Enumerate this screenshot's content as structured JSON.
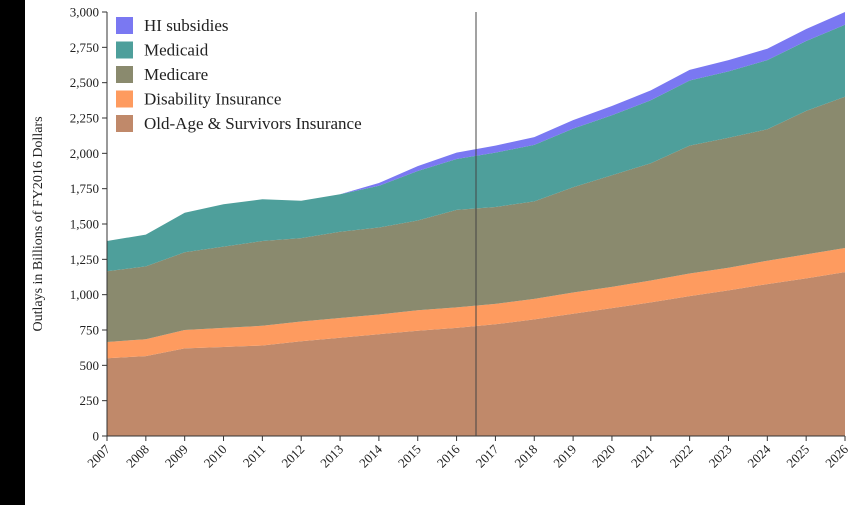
{
  "chart_data": {
    "type": "area",
    "stacked": true,
    "title": "",
    "xlabel": "",
    "ylabel": "Outlays in Billions of FY2016 Dollars",
    "ylim": [
      0,
      3000
    ],
    "yticks": [
      "0",
      "250",
      "500",
      "750",
      "1,000",
      "1,250",
      "1,500",
      "1,750",
      "2,000",
      "2,250",
      "2,500",
      "2,750",
      "3,000"
    ],
    "x": [
      "2007",
      "2008",
      "2009",
      "2010",
      "2011",
      "2012",
      "2013",
      "2014",
      "2015",
      "2016",
      "2017",
      "2018",
      "2019",
      "2020",
      "2021",
      "2022",
      "2023",
      "2024",
      "2025",
      "2026"
    ],
    "divider_x": 2016.5,
    "legend_position": "top-left",
    "series": [
      {
        "name": "Old-Age & Survivors Insurance",
        "color": "#c0896a",
        "values": [
          550,
          565,
          620,
          630,
          640,
          670,
          695,
          720,
          745,
          765,
          790,
          825,
          865,
          905,
          945,
          990,
          1030,
          1075,
          1115,
          1160
        ]
      },
      {
        "name": "Disability Insurance",
        "color": "#fe9b5f",
        "values": [
          115,
          120,
          130,
          135,
          140,
          140,
          140,
          140,
          145,
          145,
          145,
          145,
          150,
          150,
          155,
          160,
          160,
          165,
          170,
          170
        ]
      },
      {
        "name": "Medicare",
        "color": "#8a8a6e",
        "values": [
          500,
          515,
          550,
          575,
          600,
          590,
          610,
          615,
          635,
          690,
          685,
          690,
          745,
          790,
          830,
          905,
          920,
          930,
          1015,
          1070
        ]
      },
      {
        "name": "Medicaid",
        "color": "#4e9f9b",
        "values": [
          215,
          225,
          280,
          300,
          295,
          265,
          265,
          295,
          350,
          360,
          385,
          400,
          415,
          425,
          445,
          460,
          470,
          490,
          495,
          510
        ]
      },
      {
        "name": "HI subsidies",
        "color": "#7a78f2",
        "values": [
          0,
          0,
          0,
          0,
          0,
          0,
          0,
          20,
          35,
          45,
          50,
          55,
          60,
          65,
          70,
          75,
          80,
          80,
          85,
          90
        ]
      }
    ]
  }
}
